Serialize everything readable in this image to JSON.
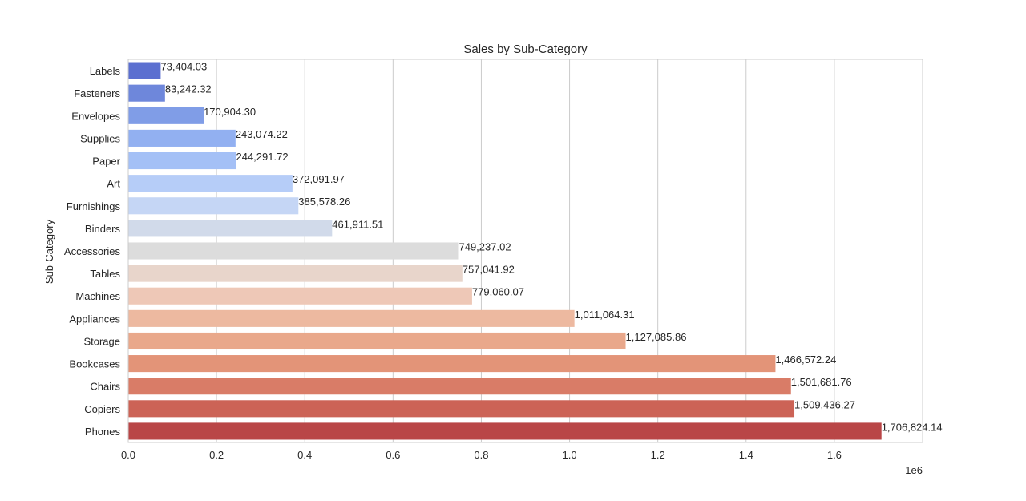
{
  "chart_data": {
    "type": "bar",
    "orientation": "horizontal",
    "title": "Sales by Sub-Category",
    "xlabel": "",
    "ylabel": "Sub-Category",
    "x_scale_label": "1e6",
    "xlim": [
      0,
      1.8
    ],
    "x_ticks": [
      "0.0",
      "0.2",
      "0.4",
      "0.6",
      "0.8",
      "1.0",
      "1.2",
      "1.4",
      "1.6"
    ],
    "grid": true,
    "palette": "coolwarm",
    "categories": [
      "Labels",
      "Fasteners",
      "Envelopes",
      "Supplies",
      "Paper",
      "Art",
      "Furnishings",
      "Binders",
      "Accessories",
      "Tables",
      "Machines",
      "Appliances",
      "Storage",
      "Bookcases",
      "Chairs",
      "Copiers",
      "Phones"
    ],
    "values": [
      73404.03,
      83242.32,
      170904.3,
      243074.22,
      244291.72,
      372091.97,
      385578.26,
      461911.51,
      749237.02,
      757041.92,
      779060.07,
      1011064.31,
      1127085.86,
      1466572.24,
      1501681.76,
      1509436.27,
      1706824.14
    ],
    "data_labels": [
      "73,404.03",
      "83,242.32",
      "170,904.30",
      "243,074.22",
      "244,291.72",
      "372,091.97",
      "385,578.26",
      "461,911.51",
      "749,237.02",
      "757,041.92",
      "779,060.07",
      "1,011,064.31",
      "1,127,085.86",
      "1,466,572.24",
      "1,501,681.76",
      "1,509,436.27",
      "1,706,824.14"
    ],
    "colors": [
      "#5b6fd0",
      "#6e87db",
      "#809de7",
      "#92b0f1",
      "#a4c0f6",
      "#b6cdf8",
      "#c5d6f5",
      "#d1daea",
      "#dcdcdc",
      "#e8d5cb",
      "#eec8b7",
      "#edb9a0",
      "#e9a88b",
      "#e39478",
      "#d97c67",
      "#cc6356",
      "#b94647"
    ]
  }
}
